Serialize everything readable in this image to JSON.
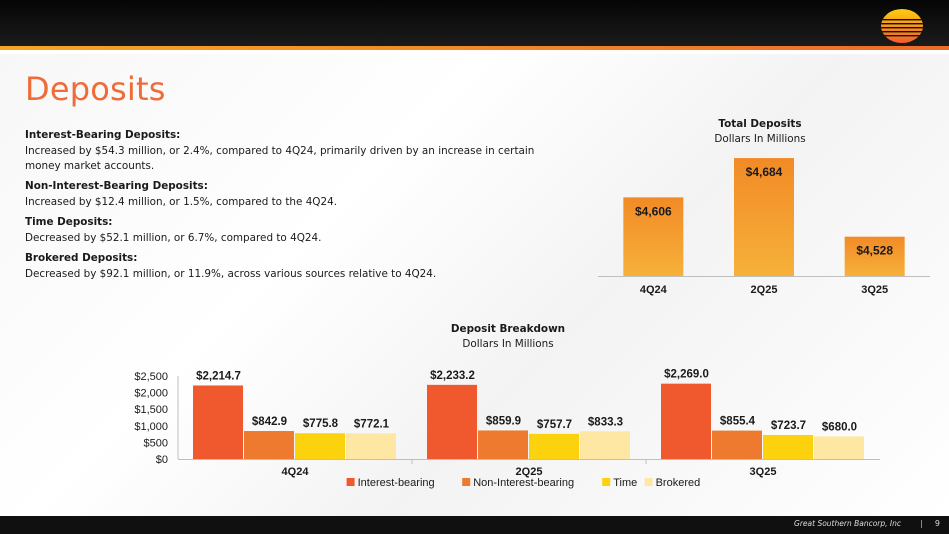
{
  "slide": {
    "title": "Deposits",
    "footer_company": "Great Southern Bancorp, Inc",
    "footer_separator": "|",
    "page_number": "9",
    "colors": {
      "accent": "#ee6b3a",
      "topbar": "#0a0a0a"
    }
  },
  "text_blocks": [
    {
      "heading": "Interest-Bearing Deposits:",
      "body": "Increased by $54.3 million, or 2.4%, compared to 4Q24, primarily driven by an increase in certain money market accounts."
    },
    {
      "heading": "Non-Interest-Bearing Deposits:",
      "body": "Increased by $12.4 million, or 1.5%, compared to the 4Q24."
    },
    {
      "heading": "Time Deposits:",
      "body": "Decreased by $52.1 million, or 6.7%, compared to 4Q24."
    },
    {
      "heading": "Brokered Deposits:",
      "body": "Decreased by $92.1 million, or 11.9%, across various sources relative to 4Q24."
    }
  ],
  "chart_data": [
    {
      "id": "total",
      "type": "bar",
      "title": "Total Deposits",
      "subtitle": "Dollars In Millions",
      "categories": [
        "4Q24",
        "2Q25",
        "3Q25"
      ],
      "values": [
        4606,
        4684,
        4528
      ],
      "data_labels": [
        "$4,606",
        "$4,684",
        "$4,528"
      ],
      "ylim": [
        4450,
        4700
      ],
      "grid": false,
      "bar_color": "#f39324"
    },
    {
      "id": "breakdown",
      "type": "bar",
      "title": "Deposit Breakdown",
      "subtitle": "Dollars In Millions",
      "categories": [
        "4Q24",
        "2Q25",
        "3Q25"
      ],
      "series": [
        {
          "name": "Interest-bearing",
          "color": "#f0592e",
          "values": [
            2214.7,
            2233.2,
            2269.0
          ],
          "labels": [
            "$2,214.7",
            "$2,233.2",
            "$2,269.0"
          ]
        },
        {
          "name": "Non-Interest-bearing",
          "color": "#ee7a30",
          "values": [
            842.9,
            859.9,
            855.4
          ],
          "labels": [
            "$842.9",
            "$859.9",
            "$855.4"
          ]
        },
        {
          "name": "Time",
          "color": "#fcd20e",
          "values": [
            775.8,
            757.7,
            723.7
          ],
          "labels": [
            "$775.8",
            "$757.7",
            "$723.7"
          ]
        },
        {
          "name": "Brokered",
          "color": "#fde7a2",
          "values": [
            772.1,
            833.3,
            680.0
          ],
          "labels": [
            "$772.1",
            "$833.3",
            "$680.0"
          ]
        }
      ],
      "ylim": [
        0,
        2500
      ],
      "yticks": [
        0,
        500,
        1000,
        1500,
        2000,
        2500
      ],
      "ytick_labels": [
        "$0",
        "$500",
        "$1,000",
        "$1,500",
        "$2,000",
        "$2,500"
      ],
      "legend": "bottom",
      "grid": false
    }
  ]
}
